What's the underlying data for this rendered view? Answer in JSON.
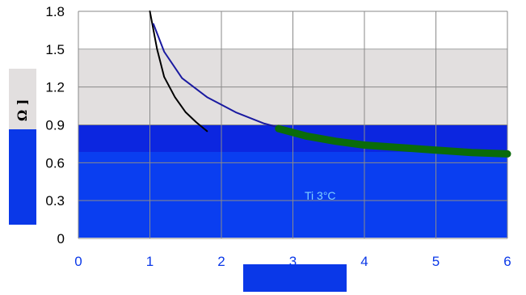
{
  "chart_data": {
    "type": "line",
    "title": "",
    "xlabel": "",
    "ylabel": "Ω ]",
    "xlim": [
      0,
      6
    ],
    "ylim": [
      0,
      1.8
    ],
    "x_ticks": [
      "0",
      "1",
      "2",
      "3",
      "4",
      "5",
      "6"
    ],
    "y_ticks": [
      "0",
      "0.3",
      "0.6",
      "0.9",
      "1.2",
      "1.5",
      "1.8"
    ],
    "grid": true,
    "annotations": [
      "Ti 3°C"
    ],
    "series": [
      {
        "color": "#000000",
        "x": [
          1.0,
          1.1,
          1.2,
          1.35,
          1.5,
          1.65,
          1.8
        ],
        "y": [
          1.8,
          1.5,
          1.28,
          1.12,
          1.0,
          0.92,
          0.85
        ]
      },
      {
        "color": "#1a1aa0",
        "x": [
          1.05,
          1.2,
          1.45,
          1.8,
          2.2,
          2.6,
          2.8
        ],
        "y": [
          1.7,
          1.48,
          1.27,
          1.12,
          1.0,
          0.91,
          0.88
        ]
      },
      {
        "color": "#0a6b0a",
        "x": [
          2.8,
          3.2,
          3.6,
          4.0,
          4.5,
          5.0,
          5.5,
          6.0
        ],
        "y": [
          0.87,
          0.81,
          0.77,
          0.74,
          0.72,
          0.7,
          0.68,
          0.67
        ]
      }
    ]
  }
}
